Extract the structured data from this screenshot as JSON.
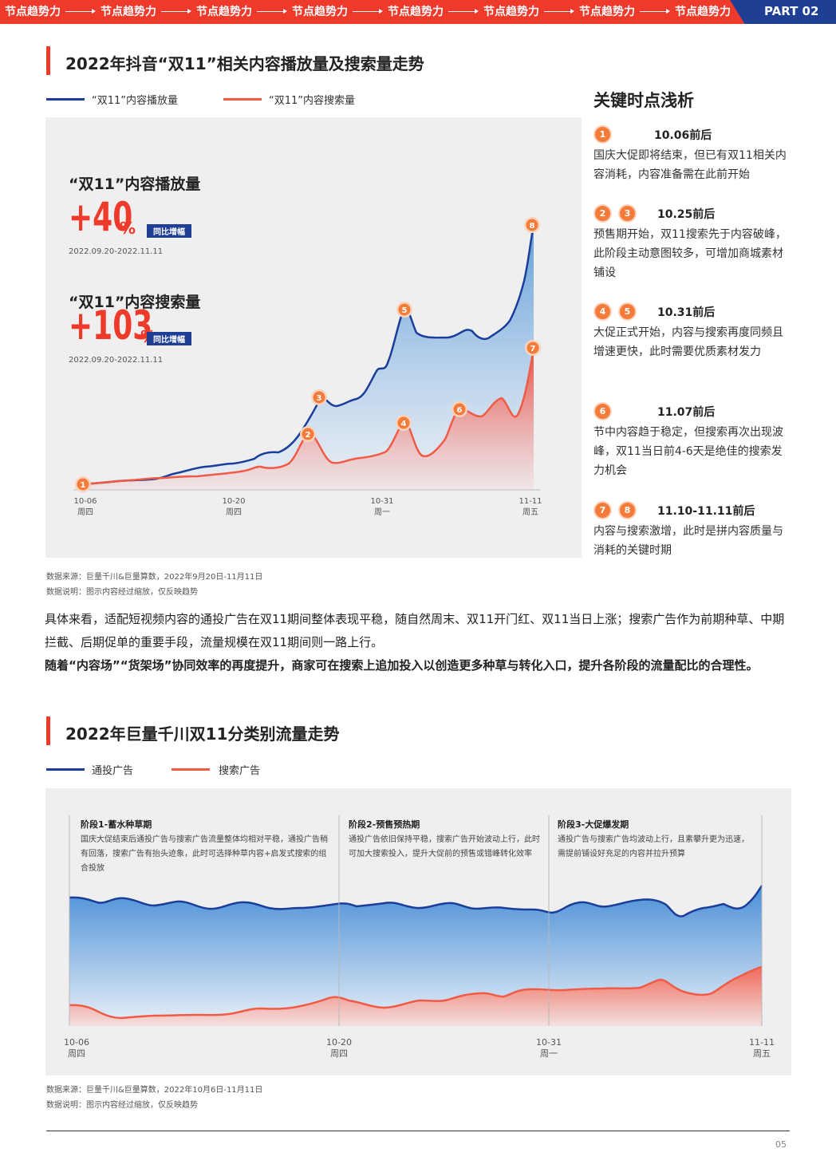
{
  "banner": {
    "items": [
      "节点趋势力",
      "节点趋势力",
      "节点趋势力",
      "节点趋势力",
      "节点趋势力",
      "节点趋势力",
      "节点趋势力",
      "节点趋势力"
    ],
    "part_label": "PART 02"
  },
  "section1": {
    "title": "2022年抖音“双11”相关内容播放量及搜索量走势",
    "legend": [
      "“双11”内容播放量",
      "“双11”内容搜索量"
    ],
    "kpi_play_label": "“双11”内容播放量",
    "kpi_play_value": "+40",
    "kpi_play_pct": "%",
    "kpi_play_badge": "同比增幅",
    "kpi_play_period": "2022.09.20-2022.11.11",
    "kpi_search_label": "“双11”内容搜索量",
    "kpi_search_value": "+103",
    "kpi_search_pct": "%",
    "kpi_search_badge": "同比增幅",
    "kpi_search_period": "2022.09.20-2022.11.11",
    "ticks": [
      {
        "date": "10-06",
        "day": "周四"
      },
      {
        "date": "10-20",
        "day": "周四"
      },
      {
        "date": "10-31",
        "day": "周一"
      },
      {
        "date": "11-11",
        "day": "周五"
      }
    ],
    "source": "数据来源：巨量千川&巨量算数，2022年9月20日-11月11日",
    "note": "数据说明：图示内容经过缩放，仅反映趋势"
  },
  "key_points": {
    "title": "关键时点浅析",
    "items": [
      {
        "badges": [
          "1"
        ],
        "time": "10.06前后",
        "text": "国庆大促即将结束，但已有双11相关内容消耗，内容准备需在此前开始"
      },
      {
        "badges": [
          "2",
          "3"
        ],
        "time": "10.25前后",
        "text": "预售期开始，双11搜索先于内容破峰，此阶段主动意图较多，可增加商城素材铺设"
      },
      {
        "badges": [
          "4",
          "5"
        ],
        "time": "10.31前后",
        "text": "大促正式开始，内容与搜索再度同频且增速更快，此时需要优质素材发力"
      },
      {
        "badges": [
          "6"
        ],
        "time": "11.07前后",
        "text": "节中内容趋于稳定，但搜索再次出现波峰，双11当日前4-6天是绝佳的搜索发力机会"
      },
      {
        "badges": [
          "7",
          "8"
        ],
        "time": "11.10-11.11前后",
        "text": "内容与搜索激增，此时是拼内容质量与消耗的关键时期"
      }
    ]
  },
  "paragraph": {
    "normal": "具体来看，适配短视频内容的通投广告在双11期间整体表现平稳，随自然周末、双11开门红、双11当日上涨；搜索广告作为前期种草、中期拦截、后期促单的重要手段，流量规模在双11期间则一路上行。",
    "bold": "随着“内容场”“货架场”协同效率的再度提升，商家可在搜索上追加投入以创造更多种草与转化入口，提升各阶段的流量配比的合理性。"
  },
  "section2": {
    "title": "2022年巨量千川双11分类别流量走势",
    "legend": [
      "通投广告",
      "搜索广告"
    ],
    "stages": [
      {
        "title": "阶段1-蓄水种草期",
        "text": "国庆大促结束后通投广告与搜索广告流量整体均相对平稳，通投广告稍有回落，搜索广告有抬头迹象，此时可选择种草内容+启发式搜索的组合投放"
      },
      {
        "title": "阶段2-预售预热期",
        "text": "通投广告依旧保持平稳，搜索广告开始波动上行，此时可加大搜索投入，提升大促前的预售或错峰转化效率"
      },
      {
        "title": "阶段3-大促爆发期",
        "text": "通投广告与搜索广告均波动上行，且素攀升更为迅速，需提前铺设好充足的内容并拉升预算"
      }
    ],
    "ticks": [
      {
        "date": "10-06",
        "day": "周四"
      },
      {
        "date": "10-20",
        "day": "周四"
      },
      {
        "date": "10-31",
        "day": "周一"
      },
      {
        "date": "11-11",
        "day": "周五"
      }
    ],
    "source": "数据来源：巨量千川&巨量算数，2022年10月6日-11月11日",
    "note": "数据说明：图示内容经过缩放，仅反映趋势"
  },
  "page_number": "05",
  "colors": {
    "red": "#ee3a2a",
    "navy": "#1f3f95",
    "orange": "#f47b3a",
    "blue_line": "#1a3e9a",
    "red_line": "#f15a45"
  }
}
